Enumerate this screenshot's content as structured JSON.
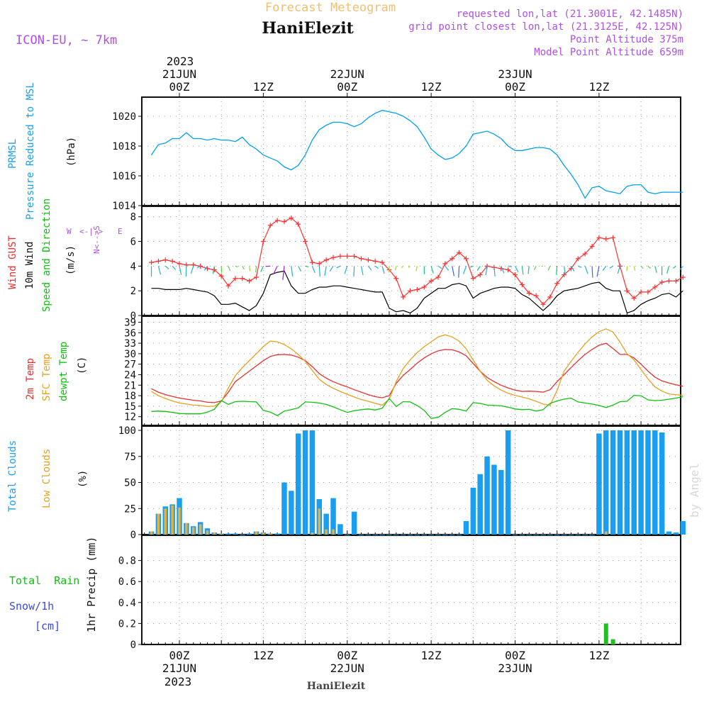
{
  "header": {
    "title": "Forecast Meteogram",
    "site": "HaniElezit",
    "model": "ICON-EU, ~ 7km",
    "requested": "requested lon,lat (21.3001E, 42.1485N)",
    "gridpoint": "grid point closest lon,lat (21.3125E, 42.125N)",
    "point_altitude": "Point Altitude 375m",
    "model_altitude": "Model Point Altitude 659m",
    "credit": "by Angel",
    "footer_site": "HaniElezit"
  },
  "time_axis": {
    "top_year": "2023",
    "bottom_year": "2023",
    "ticks": [
      {
        "h": 0,
        "label": "00Z",
        "date": "21JUN"
      },
      {
        "h": 12,
        "label": "12Z",
        "date": ""
      },
      {
        "h": 24,
        "label": "00Z",
        "date": "22JUN"
      },
      {
        "h": 36,
        "label": "12Z",
        "date": ""
      },
      {
        "h": 48,
        "label": "00Z",
        "date": "23JUN"
      },
      {
        "h": 60,
        "label": "12Z",
        "date": ""
      }
    ]
  },
  "colors": {
    "pressure": "#00a0f0",
    "gust": "#ff3030",
    "wind": "#000000",
    "temp": "#e83030",
    "sfc": "#e8a020",
    "dewpt": "#10c010",
    "total_cloud": "#1a9ff0",
    "low_cloud": "#e8b040",
    "rain": "#20c020",
    "label_purple": "#b050e0",
    "title_orange": "#f0c070"
  },
  "labels": {
    "p1_names": [
      "PRMSL",
      "Pressure Reduced to MSL"
    ],
    "p1_unit": "(hPa)",
    "p2_names": [
      "Wind GUST",
      "10m Wind",
      "Speed and Direction"
    ],
    "p2_unit": "(m/s)",
    "compass": {
      "ns": "N<-->S",
      "w": "W",
      "e": "E",
      "wide": "<-|->"
    },
    "p3_names": [
      "2m Temp",
      "SFC Temp",
      "dewpt Temp"
    ],
    "p3_unit": "(C)",
    "p4_names": [
      "Total Clouds",
      "Low Clouds"
    ],
    "p4_unit": "(%)",
    "p5_left": [
      "Total  Rain",
      "Snow/1h",
      "[cm]"
    ],
    "p5_unit": "1hr Precip (mm)"
  },
  "chart_data": [
    {
      "type": "line",
      "panel": "pressure",
      "ylim": [
        1014,
        1021
      ],
      "yticks": [
        1014,
        1016,
        1018,
        1020
      ],
      "x": [
        -4,
        -3,
        -2,
        -1,
        0,
        1,
        2,
        3,
        4,
        5,
        6,
        7,
        8,
        9,
        10,
        11,
        12,
        13,
        14,
        15,
        16,
        17,
        18,
        19,
        20,
        21,
        22,
        23,
        24,
        25,
        26,
        27,
        28,
        29,
        30,
        31,
        32,
        33,
        34,
        35,
        36,
        37,
        38,
        39,
        40,
        41,
        42,
        42,
        44,
        45,
        46,
        47,
        48,
        49,
        50,
        51,
        52,
        53,
        54,
        55,
        56,
        57,
        58,
        59,
        60,
        61,
        62,
        63,
        64,
        65,
        66,
        67,
        68,
        69,
        70,
        71,
        72
      ],
      "values": [
        1017.4,
        1018.1,
        1018.2,
        1018.5,
        1018.5,
        1018.9,
        1018.5,
        1018.5,
        1018.4,
        1018.5,
        1018.4,
        1018.4,
        1018.3,
        1018.6,
        1018.1,
        1017.8,
        1017.4,
        1017.2,
        1017.0,
        1016.6,
        1016.4,
        1016.7,
        1017.4,
        1018.4,
        1019.1,
        1019.4,
        1019.6,
        1019.6,
        1019.5,
        1019.3,
        1019.5,
        1019.9,
        1020.2,
        1020.4,
        1020.3,
        1020.2,
        1020.0,
        1019.7,
        1019.3,
        1018.6,
        1017.8,
        1017.4,
        1017.1,
        1017.2,
        1017.5,
        1018.0,
        1018.8,
        1018.8,
        1019.0,
        1018.8,
        1018.5,
        1018.0,
        1017.7,
        1017.7,
        1017.8,
        1017.9,
        1017.9,
        1017.8,
        1017.4,
        1016.7,
        1016.1,
        1015.4,
        1014.5,
        1015.2,
        1015.3,
        1015.0,
        1014.9,
        1014.8,
        1015.3,
        1015.4,
        1015.4,
        1014.9,
        1014.8,
        1014.9,
        1014.9,
        1014.9,
        1014.9
      ]
    },
    {
      "type": "line",
      "panel": "wind",
      "ylim": [
        0,
        8.5
      ],
      "yticks": [
        0,
        2,
        4,
        6,
        8
      ],
      "x": [
        -4,
        -3,
        -2,
        -1,
        0,
        1,
        2,
        3,
        4,
        5,
        6,
        7,
        8,
        9,
        10,
        11,
        12,
        13,
        14,
        15,
        16,
        17,
        18,
        19,
        20,
        21,
        22,
        23,
        24,
        25,
        26,
        27,
        28,
        29,
        30,
        31,
        32,
        33,
        34,
        35,
        36,
        37,
        38,
        39,
        40,
        41,
        42,
        43,
        44,
        45,
        46,
        47,
        48,
        49,
        50,
        51,
        52,
        53,
        54,
        55,
        56,
        57,
        58,
        59,
        60,
        61,
        62,
        63,
        64,
        65,
        66,
        67,
        68,
        69,
        70,
        71,
        72
      ],
      "series": [
        {
          "name": "gust",
          "values": [
            4.3,
            4.4,
            4.5,
            4.4,
            4.2,
            4.1,
            4.1,
            4.0,
            3.8,
            3.7,
            3.2,
            2.4,
            3.0,
            3.0,
            2.8,
            3.1,
            6.0,
            7.3,
            7.7,
            7.6,
            7.9,
            7.4,
            6.0,
            4.3,
            4.2,
            4.5,
            4.7,
            4.8,
            4.8,
            4.8,
            4.6,
            4.5,
            4.4,
            4.3,
            3.7,
            3.0,
            1.5,
            2.0,
            2.1,
            2.3,
            2.8,
            3.1,
            4.2,
            4.6,
            5.1,
            4.6,
            3.0,
            3.3,
            4.0,
            3.9,
            3.8,
            3.7,
            3.3,
            2.5,
            1.8,
            1.6,
            0.9,
            1.5,
            2.6,
            3.3,
            3.8,
            4.6,
            5.0,
            5.6,
            6.3,
            6.2,
            6.3,
            4.0,
            2.0,
            1.4,
            1.9,
            1.9,
            2.3,
            2.7,
            2.8,
            2.8,
            3.1
          ]
        },
        {
          "name": "wind",
          "values": [
            2.2,
            2.2,
            2.1,
            2.1,
            2.1,
            2.2,
            2.1,
            2.0,
            1.9,
            1.6,
            0.9,
            0.9,
            1.0,
            0.7,
            0.4,
            0.8,
            1.8,
            3.3,
            3.5,
            3.6,
            2.4,
            1.8,
            1.8,
            2.1,
            2.3,
            2.3,
            2.4,
            2.4,
            2.3,
            2.2,
            2.1,
            2.0,
            1.9,
            1.9,
            0.6,
            0.3,
            0.4,
            0.2,
            0.6,
            1.4,
            1.8,
            2.2,
            2.2,
            2.5,
            2.6,
            2.4,
            1.4,
            1.8,
            2.0,
            2.2,
            2.3,
            2.3,
            2.2,
            1.7,
            1.4,
            0.9,
            0.4,
            0.9,
            1.6,
            2.0,
            2.1,
            2.2,
            2.4,
            2.6,
            2.7,
            2.2,
            2.0,
            2.0,
            0.2,
            0.4,
            0.9,
            1.2,
            1.4,
            1.7,
            1.8,
            1.5,
            2.0
          ]
        }
      ]
    },
    {
      "type": "line",
      "panel": "temperature",
      "ylim": [
        9.5,
        39.5
      ],
      "yticks": [
        12,
        15,
        18,
        21,
        24,
        27,
        30,
        33,
        36,
        39
      ],
      "x": [
        -4,
        -3,
        -2,
        -1,
        0,
        1,
        2,
        3,
        4,
        5,
        6,
        7,
        8,
        9,
        10,
        11,
        12,
        13,
        14,
        15,
        16,
        17,
        18,
        19,
        20,
        21,
        22,
        23,
        24,
        25,
        26,
        27,
        28,
        29,
        30,
        31,
        32,
        33,
        34,
        35,
        36,
        37,
        38,
        39,
        40,
        41,
        42,
        43,
        44,
        45,
        46,
        47,
        48,
        49,
        50,
        51,
        52,
        53,
        54,
        55,
        56,
        57,
        58,
        59,
        60,
        61,
        62,
        63,
        64,
        65,
        66,
        67,
        68,
        69,
        70,
        71,
        72
      ],
      "series": [
        {
          "name": "2m Temp",
          "values": [
            20.0,
            19.0,
            18.3,
            17.8,
            17.3,
            17.0,
            16.7,
            16.5,
            16.1,
            16.0,
            16.5,
            19.0,
            22.0,
            23.5,
            25.0,
            26.5,
            28.0,
            29.2,
            29.7,
            29.8,
            29.6,
            29.0,
            28.0,
            26.3,
            24.3,
            23.0,
            22.0,
            21.2,
            20.5,
            19.7,
            19.0,
            18.3,
            17.7,
            17.4,
            18.0,
            21.5,
            23.8,
            25.5,
            27.3,
            28.8,
            30.0,
            30.8,
            31.2,
            31.1,
            30.5,
            29.4,
            27.2,
            25.0,
            23.2,
            22.0,
            21.0,
            20.2,
            19.6,
            19.2,
            19.3,
            19.2,
            19.0,
            19.7,
            22.0,
            24.0,
            26.0,
            28.0,
            29.8,
            31.2,
            32.4,
            33.0,
            31.5,
            29.8,
            29.8,
            28.8,
            27.0,
            25.0,
            23.3,
            22.2,
            21.6,
            21.1,
            20.7
          ]
        },
        {
          "name": "SFC Temp",
          "values": [
            19.2,
            18.0,
            17.2,
            16.5,
            15.9,
            15.6,
            15.3,
            15.2,
            14.9,
            15.0,
            16.3,
            20.2,
            23.7,
            26.0,
            28.0,
            30.0,
            32.0,
            33.6,
            33.4,
            32.6,
            31.4,
            29.8,
            27.8,
            25.2,
            22.7,
            21.2,
            20.1,
            19.2,
            18.4,
            17.6,
            16.9,
            16.4,
            15.8,
            15.3,
            17.0,
            22.0,
            25.8,
            28.2,
            30.3,
            32.0,
            33.4,
            34.8,
            35.4,
            34.8,
            33.6,
            31.4,
            28.2,
            25.0,
            22.4,
            20.8,
            19.6,
            18.7,
            18.1,
            17.6,
            17.1,
            16.4,
            15.6,
            15.2,
            19.5,
            25.0,
            27.8,
            30.4,
            32.8,
            34.8,
            36.3,
            37.1,
            36.2,
            33.3,
            30.0,
            28.2,
            25.5,
            22.8,
            20.5,
            19.3,
            18.5,
            18.3,
            18.1
          ]
        },
        {
          "name": "dewpt Temp",
          "values": [
            13.5,
            13.6,
            13.5,
            13.2,
            12.9,
            12.8,
            12.8,
            12.8,
            13.3,
            14.1,
            16.6,
            15.5,
            16.3,
            16.4,
            16.3,
            16.2,
            13.8,
            13.3,
            12.3,
            13.6,
            14.0,
            14.5,
            16.2,
            16.1,
            15.9,
            15.5,
            14.8,
            14.0,
            13.2,
            13.7,
            14.0,
            14.2,
            13.9,
            14.4,
            17.2,
            14.9,
            16.3,
            16.2,
            15.2,
            13.8,
            11.5,
            11.8,
            13.2,
            14.3,
            14.1,
            13.6,
            16.0,
            15.8,
            15.3,
            15.2,
            15.1,
            14.7,
            14.2,
            14.0,
            14.1,
            13.6,
            14.0,
            15.8,
            16.5,
            17.0,
            17.3,
            16.2,
            15.9,
            15.6,
            15.2,
            14.6,
            15.3,
            16.3,
            16.4,
            18.1,
            18.0,
            16.8,
            16.6,
            16.7,
            17.0,
            17.3,
            17.7
          ]
        }
      ]
    },
    {
      "type": "bar",
      "panel": "clouds",
      "ylim": [
        0,
        100
      ],
      "yticks": [
        0,
        25,
        50,
        75,
        100
      ],
      "x": [
        -4,
        -3,
        -2,
        -1,
        0,
        1,
        2,
        3,
        4,
        5,
        6,
        7,
        8,
        9,
        10,
        11,
        12,
        13,
        14,
        15,
        16,
        17,
        18,
        19,
        20,
        21,
        22,
        23,
        24,
        25,
        26,
        27,
        28,
        29,
        30,
        31,
        32,
        33,
        34,
        35,
        36,
        37,
        38,
        39,
        40,
        41,
        42,
        43,
        44,
        45,
        46,
        47,
        48,
        49,
        50,
        51,
        52,
        53,
        54,
        55,
        56,
        57,
        58,
        59,
        60,
        61,
        62,
        63,
        64,
        65,
        66,
        67,
        68,
        69,
        70,
        71,
        72
      ],
      "series": [
        {
          "name": "Total Clouds",
          "values": [
            3,
            20,
            27,
            29,
            35,
            11,
            8,
            12,
            6,
            2,
            1,
            1,
            1,
            0,
            1,
            3,
            2,
            1,
            1,
            50,
            42,
            97,
            100,
            100,
            34,
            20,
            35,
            10,
            0,
            22,
            0,
            0,
            0,
            0,
            0,
            0,
            0,
            0,
            0,
            0,
            0,
            0,
            0,
            0,
            0,
            13,
            45,
            58,
            75,
            67,
            62,
            100,
            0,
            0,
            0,
            0,
            0,
            0,
            0,
            0,
            0,
            0,
            0,
            0,
            97,
            100,
            100,
            100,
            100,
            100,
            100,
            100,
            100,
            98,
            3,
            2,
            13
          ]
        },
        {
          "name": "Low Clouds",
          "values": [
            3,
            20,
            25,
            28,
            26,
            11,
            7,
            10,
            4,
            2,
            1,
            0,
            0,
            0,
            0,
            3,
            2,
            1,
            0,
            0,
            0,
            0,
            0,
            2,
            25,
            5,
            5,
            0,
            0,
            0,
            0,
            0,
            0,
            0,
            0,
            0,
            0,
            0,
            0,
            0,
            0,
            0,
            0,
            0,
            0,
            0,
            0,
            0,
            0,
            0,
            0,
            0,
            0,
            0,
            0,
            0,
            0,
            0,
            0,
            0,
            0,
            0,
            0,
            0,
            0,
            3,
            0,
            0,
            0,
            0,
            0,
            0,
            0,
            0,
            0,
            0,
            0
          ]
        }
      ]
    },
    {
      "type": "bar",
      "panel": "precip",
      "ylim": [
        0,
        1
      ],
      "yticks": [
        0,
        0.2,
        0.4,
        0.6,
        0.8
      ],
      "x": [
        61,
        62
      ],
      "series": [
        {
          "name": "Total Rain",
          "values": [
            0.2,
            0.05
          ]
        }
      ]
    }
  ]
}
